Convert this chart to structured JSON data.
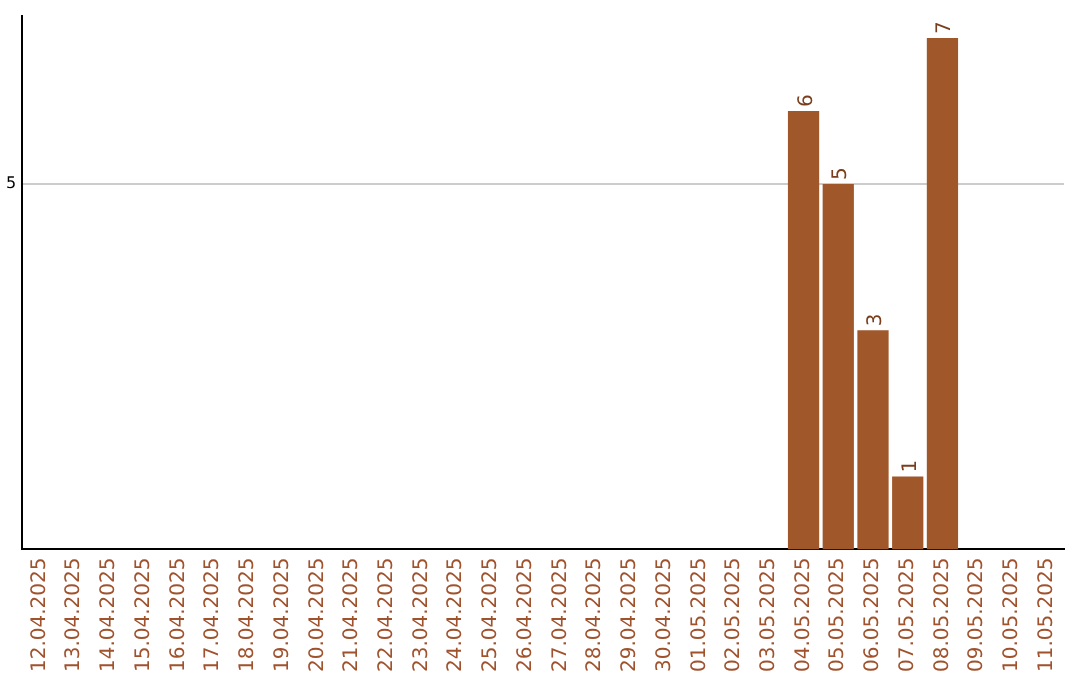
{
  "chart_data": {
    "type": "bar",
    "categories": [
      "12.04.2025",
      "13.04.2025",
      "14.04.2025",
      "15.04.2025",
      "16.04.2025",
      "17.04.2025",
      "18.04.2025",
      "19.04.2025",
      "20.04.2025",
      "21.04.2025",
      "22.04.2025",
      "23.04.2025",
      "24.04.2025",
      "25.04.2025",
      "26.04.2025",
      "27.04.2025",
      "28.04.2025",
      "29.04.2025",
      "30.04.2025",
      "01.05.2025",
      "02.05.2025",
      "03.05.2025",
      "04.05.2025",
      "05.05.2025",
      "06.05.2025",
      "07.05.2025",
      "08.05.2025",
      "09.05.2025",
      "10.05.2025",
      "11.05.2025"
    ],
    "values": [
      null,
      null,
      null,
      null,
      null,
      null,
      null,
      null,
      null,
      null,
      null,
      null,
      null,
      null,
      null,
      null,
      null,
      null,
      null,
      null,
      null,
      null,
      6,
      5,
      3,
      1,
      7,
      null,
      null,
      null
    ],
    "color": "#a0572a",
    "ylim": [
      0,
      7.3
    ],
    "yticks": [
      5
    ],
    "grid": "y",
    "data_labels": true,
    "legend": false
  }
}
